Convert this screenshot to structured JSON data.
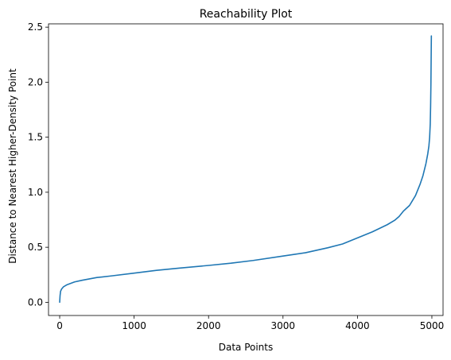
{
  "chart_data": {
    "type": "line",
    "title": "Reachability Plot",
    "xlabel": "Data Points",
    "ylabel": "Distance to Nearest Higher-Density Point",
    "xlim": [
      -150,
      5150
    ],
    "ylim": [
      -0.12,
      2.53
    ],
    "xticks": [
      0,
      1000,
      2000,
      3000,
      4000,
      5000
    ],
    "yticks": [
      0.0,
      0.5,
      1.0,
      1.5,
      2.0,
      2.5
    ],
    "xtick_labels": [
      "0",
      "1000",
      "2000",
      "3000",
      "4000",
      "5000"
    ],
    "ytick_labels": [
      "0.0",
      "0.5",
      "1.0",
      "1.5",
      "2.0",
      "2.5"
    ],
    "grid": false,
    "series": [
      {
        "color": "#1f77b4",
        "x": [
          0,
          5,
          12,
          25,
          50,
          100,
          200,
          300,
          500,
          700,
          1000,
          1300,
          1600,
          2000,
          2300,
          2600,
          3000,
          3300,
          3600,
          3800,
          4000,
          4200,
          4400,
          4500,
          4560,
          4620,
          4700,
          4780,
          4840,
          4880,
          4920,
          4945,
          4960,
          4970,
          4978,
          4983,
          4987,
          4990,
          4993
        ],
        "y": [
          0.0,
          0.06,
          0.1,
          0.12,
          0.14,
          0.16,
          0.185,
          0.2,
          0.225,
          0.24,
          0.265,
          0.29,
          0.31,
          0.335,
          0.355,
          0.38,
          0.42,
          0.45,
          0.495,
          0.53,
          0.585,
          0.64,
          0.705,
          0.745,
          0.78,
          0.83,
          0.88,
          0.97,
          1.07,
          1.15,
          1.26,
          1.35,
          1.42,
          1.5,
          1.62,
          1.78,
          1.98,
          2.2,
          2.42
        ]
      }
    ]
  }
}
